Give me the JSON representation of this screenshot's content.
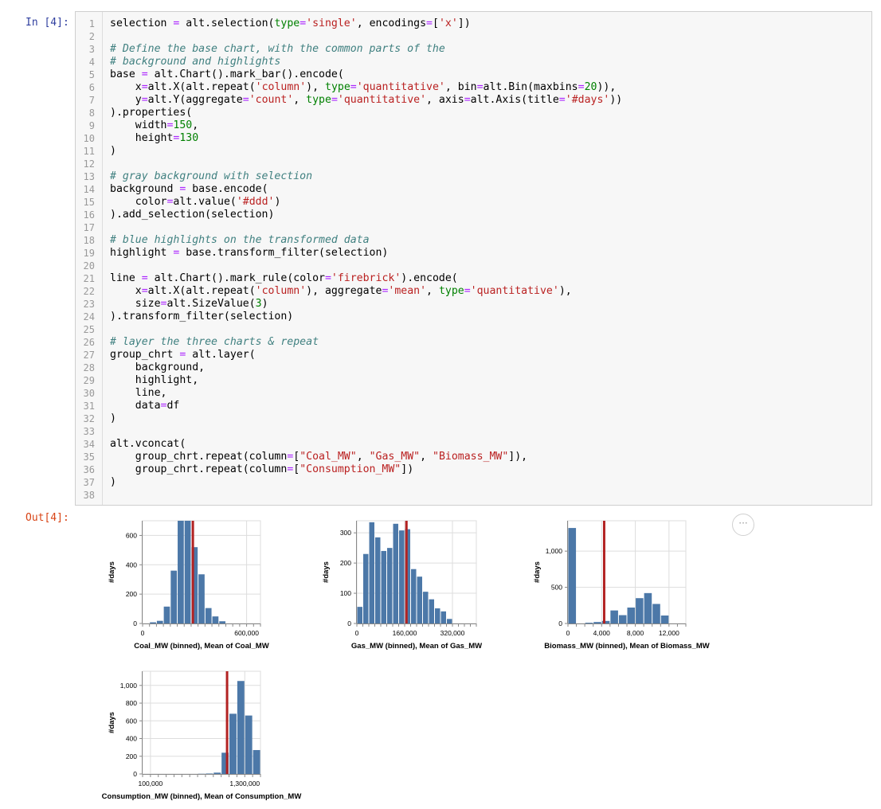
{
  "input_prompt": "In [4]:",
  "output_prompt": "Out[4]:",
  "more_label": "···",
  "code_lines": [
    [
      {
        "t": "selection "
      },
      {
        "t": "=",
        "c": "op"
      },
      {
        "t": " alt.selection("
      },
      {
        "t": "type",
        "c": "kw"
      },
      {
        "t": "=",
        "c": "op"
      },
      {
        "t": "'single'",
        "c": "str"
      },
      {
        "t": ", encodings"
      },
      {
        "t": "=",
        "c": "op"
      },
      {
        "t": "["
      },
      {
        "t": "'x'",
        "c": "str"
      },
      {
        "t": "])"
      }
    ],
    [],
    [
      {
        "t": "# Define the base chart, with the common parts of the",
        "c": "cm"
      }
    ],
    [
      {
        "t": "# background and highlights",
        "c": "cm"
      }
    ],
    [
      {
        "t": "base "
      },
      {
        "t": "=",
        "c": "op"
      },
      {
        "t": " alt.Chart().mark_bar().encode("
      }
    ],
    [
      {
        "t": "    x"
      },
      {
        "t": "=",
        "c": "op"
      },
      {
        "t": "alt.X(alt.repeat("
      },
      {
        "t": "'column'",
        "c": "str"
      },
      {
        "t": "), "
      },
      {
        "t": "type",
        "c": "kw"
      },
      {
        "t": "=",
        "c": "op"
      },
      {
        "t": "'quantitative'",
        "c": "str"
      },
      {
        "t": ", bin"
      },
      {
        "t": "=",
        "c": "op"
      },
      {
        "t": "alt.Bin(maxbins"
      },
      {
        "t": "=",
        "c": "op"
      },
      {
        "t": "20",
        "c": "num"
      },
      {
        "t": ")),"
      }
    ],
    [
      {
        "t": "    y"
      },
      {
        "t": "=",
        "c": "op"
      },
      {
        "t": "alt.Y(aggregate"
      },
      {
        "t": "=",
        "c": "op"
      },
      {
        "t": "'count'",
        "c": "str"
      },
      {
        "t": ", "
      },
      {
        "t": "type",
        "c": "kw"
      },
      {
        "t": "=",
        "c": "op"
      },
      {
        "t": "'quantitative'",
        "c": "str"
      },
      {
        "t": ", axis"
      },
      {
        "t": "=",
        "c": "op"
      },
      {
        "t": "alt.Axis(title"
      },
      {
        "t": "=",
        "c": "op"
      },
      {
        "t": "'#days'",
        "c": "str"
      },
      {
        "t": "))"
      }
    ],
    [
      {
        "t": ").properties("
      }
    ],
    [
      {
        "t": "    width"
      },
      {
        "t": "=",
        "c": "op"
      },
      {
        "t": "150",
        "c": "num"
      },
      {
        "t": ","
      }
    ],
    [
      {
        "t": "    height"
      },
      {
        "t": "=",
        "c": "op"
      },
      {
        "t": "130",
        "c": "num"
      }
    ],
    [
      {
        "t": ")"
      }
    ],
    [],
    [
      {
        "t": "# gray background with selection",
        "c": "cm"
      }
    ],
    [
      {
        "t": "background "
      },
      {
        "t": "=",
        "c": "op"
      },
      {
        "t": " base.encode("
      }
    ],
    [
      {
        "t": "    color"
      },
      {
        "t": "=",
        "c": "op"
      },
      {
        "t": "alt.value("
      },
      {
        "t": "'#ddd'",
        "c": "str"
      },
      {
        "t": ")"
      }
    ],
    [
      {
        "t": ").add_selection(selection)"
      }
    ],
    [],
    [
      {
        "t": "# blue highlights on the transformed data",
        "c": "cm"
      }
    ],
    [
      {
        "t": "highlight "
      },
      {
        "t": "=",
        "c": "op"
      },
      {
        "t": " base.transform_filter(selection)"
      }
    ],
    [],
    [
      {
        "t": "line "
      },
      {
        "t": "=",
        "c": "op"
      },
      {
        "t": " alt.Chart().mark_rule(color"
      },
      {
        "t": "=",
        "c": "op"
      },
      {
        "t": "'firebrick'",
        "c": "str"
      },
      {
        "t": ").encode("
      }
    ],
    [
      {
        "t": "    x"
      },
      {
        "t": "=",
        "c": "op"
      },
      {
        "t": "alt.X(alt.repeat("
      },
      {
        "t": "'column'",
        "c": "str"
      },
      {
        "t": "), aggregate"
      },
      {
        "t": "=",
        "c": "op"
      },
      {
        "t": "'mean'",
        "c": "str"
      },
      {
        "t": ", "
      },
      {
        "t": "type",
        "c": "kw"
      },
      {
        "t": "=",
        "c": "op"
      },
      {
        "t": "'quantitative'",
        "c": "str"
      },
      {
        "t": "),"
      }
    ],
    [
      {
        "t": "    size"
      },
      {
        "t": "=",
        "c": "op"
      },
      {
        "t": "alt.SizeValue("
      },
      {
        "t": "3",
        "c": "num"
      },
      {
        "t": ")"
      }
    ],
    [
      {
        "t": ").transform_filter(selection)"
      }
    ],
    [],
    [
      {
        "t": "# layer the three charts & repeat",
        "c": "cm"
      }
    ],
    [
      {
        "t": "group_chrt "
      },
      {
        "t": "=",
        "c": "op"
      },
      {
        "t": " alt.layer("
      }
    ],
    [
      {
        "t": "    background,"
      }
    ],
    [
      {
        "t": "    highlight,"
      }
    ],
    [
      {
        "t": "    line,"
      }
    ],
    [
      {
        "t": "    data"
      },
      {
        "t": "=",
        "c": "op"
      },
      {
        "t": "df"
      }
    ],
    [
      {
        "t": ")"
      }
    ],
    [],
    [
      {
        "t": "alt.vconcat("
      }
    ],
    [
      {
        "t": "    group_chrt.repeat(column"
      },
      {
        "t": "=",
        "c": "op"
      },
      {
        "t": "["
      },
      {
        "t": "\"Coal_MW\"",
        "c": "str"
      },
      {
        "t": ", "
      },
      {
        "t": "\"Gas_MW\"",
        "c": "str"
      },
      {
        "t": ", "
      },
      {
        "t": "\"Biomass_MW\"",
        "c": "str"
      },
      {
        "t": "]),"
      }
    ],
    [
      {
        "t": "    group_chrt.repeat(column"
      },
      {
        "t": "=",
        "c": "op"
      },
      {
        "t": "["
      },
      {
        "t": "\"Consumption_MW\"",
        "c": "str"
      },
      {
        "t": "])"
      }
    ],
    [
      {
        "t": ")"
      }
    ],
    []
  ],
  "colors": {
    "bar": "#4c78a8",
    "rule": "#b22222",
    "grid": "#dddddd",
    "axis": "#888888"
  },
  "chart_data": [
    {
      "type": "bar",
      "xlabel": "Coal_MW (binned), Mean of Coal_MW",
      "ylabel": "#days",
      "bin_start": 0,
      "bin_step": 40000,
      "xlim": [
        0,
        680000
      ],
      "ylim": [
        0,
        700
      ],
      "x_ticks": [
        {
          "v": 0,
          "label": "0"
        },
        {
          "v": 600000,
          "label": "600,000"
        }
      ],
      "y_ticks": [
        {
          "v": 0,
          "label": "0"
        },
        {
          "v": 200,
          "label": "200"
        },
        {
          "v": 400,
          "label": "400"
        },
        {
          "v": 600,
          "label": "600"
        }
      ],
      "values": [
        0,
        8,
        18,
        115,
        360,
        700,
        700,
        520,
        335,
        105,
        48,
        15
      ],
      "mean": 290000
    },
    {
      "type": "bar",
      "xlabel": "Gas_MW (binned), Mean of Gas_MW",
      "ylabel": "#days",
      "bin_start": 0,
      "bin_step": 20000,
      "xlim": [
        0,
        400000
      ],
      "ylim": [
        0,
        340
      ],
      "x_ticks": [
        {
          "v": 0,
          "label": "0"
        },
        {
          "v": 160000,
          "label": "160,000"
        },
        {
          "v": 320000,
          "label": "320,000"
        }
      ],
      "y_ticks": [
        {
          "v": 0,
          "label": "0"
        },
        {
          "v": 100,
          "label": "100"
        },
        {
          "v": 200,
          "label": "200"
        },
        {
          "v": 300,
          "label": "300"
        }
      ],
      "values": [
        55,
        230,
        335,
        285,
        240,
        250,
        330,
        308,
        312,
        180,
        155,
        105,
        80,
        50,
        40,
        15
      ],
      "mean": 166000
    },
    {
      "type": "bar",
      "xlabel": "Biomass_MW (binned), Mean of Biomass_MW",
      "ylabel": "#days",
      "bin_start": 0,
      "bin_step": 1000,
      "xlim": [
        0,
        14000
      ],
      "ylim": [
        0,
        1420
      ],
      "x_ticks": [
        {
          "v": 0,
          "label": "0"
        },
        {
          "v": 4000,
          "label": "4,000"
        },
        {
          "v": 8000,
          "label": "8,000"
        },
        {
          "v": 12000,
          "label": "12,000"
        }
      ],
      "y_ticks": [
        {
          "v": 0,
          "label": "0"
        },
        {
          "v": 500,
          "label": "500"
        },
        {
          "v": 1000,
          "label": "1,000"
        }
      ],
      "values": [
        1320,
        0,
        10,
        20,
        35,
        180,
        115,
        220,
        350,
        420,
        270,
        110,
        0,
        0
      ],
      "mean": 4300
    },
    {
      "type": "bar",
      "xlabel": "Consumption_MW (binned), Mean of Consumption_MW",
      "ylabel": "#days",
      "bin_start": 0,
      "bin_step": 100000,
      "xlim": [
        0,
        1500000
      ],
      "ylim": [
        0,
        1160
      ],
      "x_ticks": [
        {
          "v": 100000,
          "label": "100,000"
        },
        {
          "v": 1300000,
          "label": "1,300,000"
        }
      ],
      "y_ticks": [
        {
          "v": 0,
          "label": "0"
        },
        {
          "v": 200,
          "label": "200"
        },
        {
          "v": 400,
          "label": "400"
        },
        {
          "v": 600,
          "label": "600"
        },
        {
          "v": 800,
          "label": "800"
        },
        {
          "v": 1000,
          "label": "1,000"
        }
      ],
      "values": [
        0,
        0,
        0,
        0,
        0,
        0,
        0,
        2,
        5,
        15,
        240,
        680,
        1050,
        660,
        270,
        30
      ],
      "mean": 1075000
    }
  ]
}
